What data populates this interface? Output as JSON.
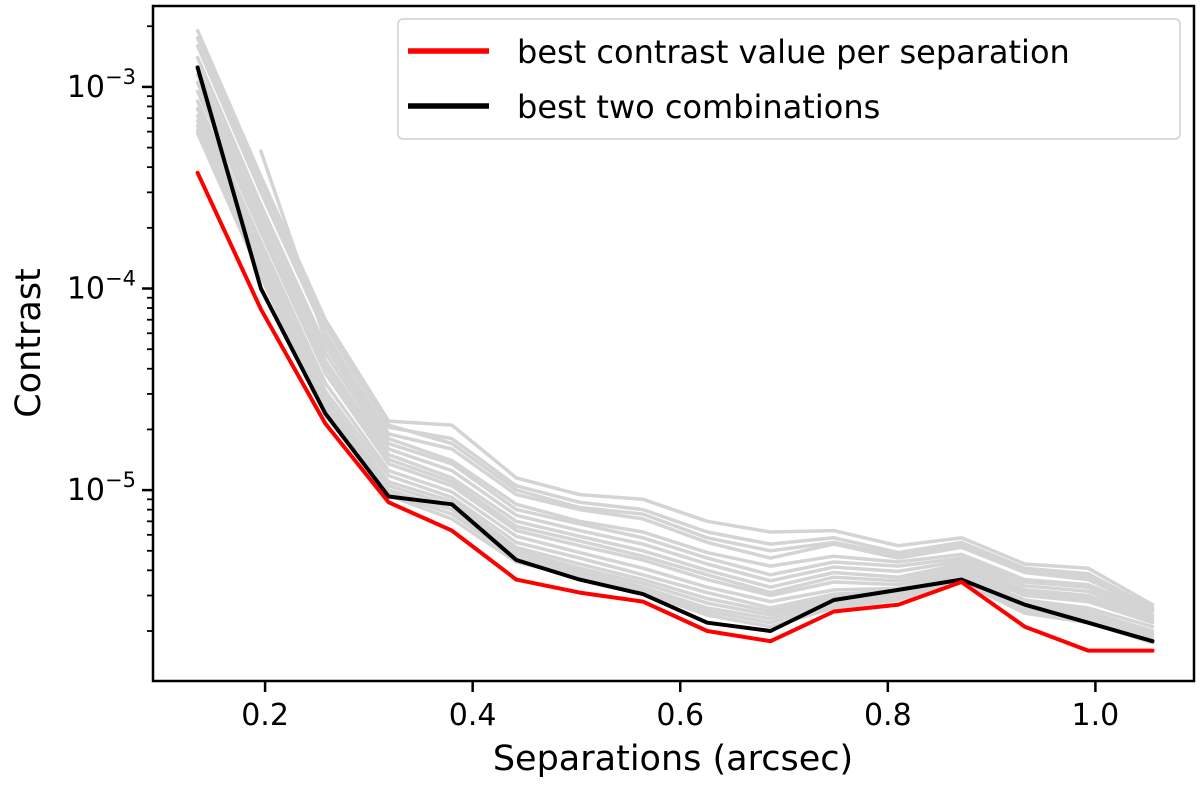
{
  "figure": {
    "background_color": "#ffffff"
  },
  "chart_data": {
    "type": "line",
    "title": "",
    "xlabel": "Separations (arcsec)",
    "ylabel": "Contrast",
    "x_scale": "linear",
    "y_scale": "log",
    "xlim": [
      0.092,
      1.095
    ],
    "ylim": [
      1.13e-06,
      0.00252
    ],
    "grid": false,
    "legend_position": "upper right",
    "colors": {
      "best_per_separation": "#ff0000",
      "best_two_combinations": "#000000",
      "unlabeled_combination": "#d4d4d4",
      "legend_border": "#cfcfcf"
    },
    "x_ticks": [
      {
        "value": 0.2,
        "label": "0.2"
      },
      {
        "value": 0.4,
        "label": "0.4"
      },
      {
        "value": 0.6,
        "label": "0.6"
      },
      {
        "value": 0.8,
        "label": "0.8"
      },
      {
        "value": 1.0,
        "label": "1.0"
      }
    ],
    "y_ticks": [
      {
        "value": 0.001,
        "base": "10",
        "exponent": "−3"
      },
      {
        "value": 0.0001,
        "base": "10",
        "exponent": "−4"
      },
      {
        "value": 1e-05,
        "base": "10",
        "exponent": "−5"
      }
    ],
    "separations": [
      0.135,
      0.196,
      0.258,
      0.319,
      0.38,
      0.442,
      0.503,
      0.564,
      0.626,
      0.687,
      0.748,
      0.81,
      0.871,
      0.932,
      0.993,
      1.055
    ],
    "series": [
      {
        "name": "best contrast value per separation",
        "color": "#ff0000",
        "line_width": 4,
        "z": 3,
        "in_legend": true,
        "start_index": 0,
        "values": [
          0.000375,
          7.9e-05,
          2.14e-05,
          8.7e-06,
          6.3e-06,
          3.6e-06,
          3.1e-06,
          2.8e-06,
          2e-06,
          1.78e-06,
          2.5e-06,
          2.7e-06,
          3.5e-06,
          2.1e-06,
          1.6e-06,
          1.6e-06
        ]
      },
      {
        "name": "best two combinations",
        "color": "#000000",
        "line_width": 4,
        "z": 2,
        "in_legend": true,
        "start_index": 0,
        "values": [
          0.00125,
          0.0001,
          2.4e-05,
          9.3e-06,
          8.5e-06,
          4.5e-06,
          3.6e-06,
          3.05e-06,
          2.2e-06,
          2e-06,
          2.85e-06,
          3.2e-06,
          3.6e-06,
          2.7e-06,
          2.2e-06,
          1.78e-06
        ]
      },
      {
        "name": "unlabeled-gray-line-1",
        "color": "#d4d4d4",
        "line_width": 3.5,
        "z": 1,
        "in_legend": false,
        "start_index": 0,
        "values": [
          0.0019,
          0.00036,
          7e-05,
          2.2e-05,
          2.1e-05,
          1.15e-05,
          9.5e-06,
          9e-06,
          7e-06,
          6.2e-06,
          6.3e-06,
          5.3e-06,
          5.8e-06,
          4.3e-06,
          4.1e-06,
          2.7e-06
        ]
      },
      {
        "name": "unlabeled-gray-line-2",
        "color": "#d4d4d4",
        "line_width": 3.5,
        "z": 1,
        "in_legend": false,
        "start_index": 0,
        "values": [
          0.0016,
          0.0003,
          6e-05,
          1.9e-05,
          1.6e-05,
          9.5e-06,
          8e-06,
          7.2e-06,
          5.5e-06,
          4.6e-06,
          5.4e-06,
          4.6e-06,
          5.2e-06,
          3.9e-06,
          3.6e-06,
          2.55e-06
        ]
      },
      {
        "name": "unlabeled-gray-line-3",
        "color": "#d4d4d4",
        "line_width": 3.5,
        "z": 1,
        "in_legend": false,
        "start_index": 0,
        "values": [
          0.0014,
          0.00026,
          5.2e-05,
          1.7e-05,
          1.35e-05,
          8e-06,
          6.8e-06,
          5.8e-06,
          4.6e-06,
          3.8e-06,
          4.4e-06,
          4.2e-06,
          4.6e-06,
          3.5e-06,
          3.3e-06,
          2.4e-06
        ]
      },
      {
        "name": "unlabeled-gray-line-4",
        "color": "#d4d4d4",
        "line_width": 3.5,
        "z": 1,
        "in_legend": false,
        "start_index": 0,
        "values": [
          0.00115,
          0.00022,
          4.4e-05,
          1.5e-05,
          1.15e-05,
          7e-06,
          5.9e-06,
          5e-06,
          4e-06,
          3.3e-06,
          3.9e-06,
          3.7e-06,
          4.3e-06,
          3.2e-06,
          3e-06,
          2.3e-06
        ]
      },
      {
        "name": "unlabeled-gray-line-5",
        "color": "#d4d4d4",
        "line_width": 3.5,
        "z": 1,
        "in_legend": false,
        "start_index": 0,
        "values": [
          0.00095,
          0.00019,
          3.8e-05,
          1.35e-05,
          1.05e-05,
          6.3e-06,
          5.3e-06,
          4.5e-06,
          3.6e-06,
          3e-06,
          3.5e-06,
          3.4e-06,
          4e-06,
          3e-06,
          2.8e-06,
          2.2e-06
        ]
      },
      {
        "name": "unlabeled-gray-line-6",
        "color": "#d4d4d4",
        "line_width": 3.5,
        "z": 1,
        "in_legend": false,
        "start_index": 0,
        "values": [
          0.00085,
          0.00017,
          3.4e-05,
          1.25e-05,
          9.8e-06,
          5.9e-06,
          4.9e-06,
          4.1e-06,
          3.3e-06,
          2.8e-06,
          3.2e-06,
          3.25e-06,
          3.9e-06,
          2.85e-06,
          2.6e-06,
          2.1e-06
        ]
      },
      {
        "name": "unlabeled-gray-line-7",
        "color": "#d4d4d4",
        "line_width": 3.5,
        "z": 1,
        "in_legend": false,
        "start_index": 0,
        "values": [
          0.00078,
          0.000155,
          3.1e-05,
          1.18e-05,
          9.2e-06,
          5.5e-06,
          4.6e-06,
          3.8e-06,
          3.1e-06,
          2.6e-06,
          3.05e-06,
          3.15e-06,
          3.8e-06,
          2.75e-06,
          2.5e-06,
          2e-06
        ]
      },
      {
        "name": "unlabeled-gray-line-8",
        "color": "#d4d4d4",
        "line_width": 3.5,
        "z": 1,
        "in_legend": false,
        "start_index": 0,
        "values": [
          0.00072,
          0.000145,
          2.9e-05,
          1.1e-05,
          8.8e-06,
          5.2e-06,
          4.3e-06,
          3.6e-06,
          2.9e-06,
          2.5e-06,
          2.95e-06,
          3.05e-06,
          3.7e-06,
          2.7e-06,
          2.4e-06,
          1.95e-06
        ]
      },
      {
        "name": "unlabeled-gray-line-9",
        "color": "#d4d4d4",
        "line_width": 3.5,
        "z": 1,
        "in_legend": false,
        "start_index": 0,
        "values": [
          0.00068,
          0.000135,
          2.75e-05,
          1.05e-05,
          8.4e-06,
          5e-06,
          4.1e-06,
          3.45e-06,
          2.75e-06,
          2.4e-06,
          2.9e-06,
          3e-06,
          3.65e-06,
          2.6e-06,
          2.35e-06,
          1.9e-06
        ]
      },
      {
        "name": "unlabeled-gray-line-10",
        "color": "#d4d4d4",
        "line_width": 3.5,
        "z": 1,
        "in_legend": false,
        "start_index": 0,
        "values": [
          0.00064,
          0.000128,
          2.6e-05,
          1e-05,
          8e-06,
          4.8e-06,
          3.95e-06,
          3.3e-06,
          2.6e-06,
          2.3e-06,
          2.8e-06,
          2.95e-06,
          3.6e-06,
          2.55e-06,
          2.3e-06,
          1.85e-06
        ]
      },
      {
        "name": "unlabeled-gray-line-11",
        "color": "#d4d4d4",
        "line_width": 3.5,
        "z": 1,
        "in_legend": false,
        "start_index": 0,
        "values": [
          0.00061,
          0.00012,
          2.5e-05,
          9.7e-06,
          7.6e-06,
          4.6e-06,
          3.8e-06,
          3.2e-06,
          2.5e-06,
          2.2e-06,
          2.7e-06,
          2.9e-06,
          3.55e-06,
          2.5e-06,
          2.25e-06,
          1.8e-06
        ]
      },
      {
        "name": "unlabeled-gray-line-12",
        "color": "#d4d4d4",
        "line_width": 3.5,
        "z": 1,
        "in_legend": false,
        "start_index": 0,
        "values": [
          0.00059,
          0.000115,
          2.4e-05,
          9.4e-06,
          7.2e-06,
          4.4e-06,
          3.7e-06,
          3.1e-06,
          2.4e-06,
          2.1e-06,
          2.6e-06,
          2.85e-06,
          3.5e-06,
          2.45e-06,
          2.2e-06,
          1.75e-06
        ]
      },
      {
        "name": "unlabeled-gray-line-13",
        "color": "#d4d4d4",
        "line_width": 3.5,
        "z": 1,
        "in_legend": false,
        "start_index": 0,
        "values": [
          0.00105,
          0.000205,
          4.1e-05,
          1.42e-05,
          1.1e-05,
          6.6e-06,
          5.6e-06,
          4.7e-06,
          3.8e-06,
          3.1e-06,
          3.7e-06,
          3.55e-06,
          4.15e-06,
          3.1e-06,
          2.9e-06,
          2.25e-06
        ]
      },
      {
        "name": "unlabeled-gray-line-14",
        "color": "#d4d4d4",
        "line_width": 3.5,
        "z": 1,
        "in_legend": false,
        "start_index": 0,
        "values": [
          0.00125,
          0.00024,
          4.8e-05,
          1.6e-05,
          1.25e-05,
          7.5e-06,
          6.3e-06,
          5.4e-06,
          4.3e-06,
          3.55e-06,
          4.15e-06,
          3.95e-06,
          4.45e-06,
          3.35e-06,
          3.15e-06,
          2.35e-06
        ]
      },
      {
        "name": "unlabeled-gray-line-15",
        "color": "#d4d4d4",
        "line_width": 3.5,
        "z": 1,
        "in_legend": false,
        "start_index": 0,
        "values": [
          0.00175,
          0.00033,
          6.5e-05,
          2.05e-05,
          1.8e-05,
          1.05e-05,
          8.7e-06,
          8e-06,
          6.2e-06,
          5.4e-06,
          5.8e-06,
          4.9e-06,
          5.5e-06,
          4.1e-06,
          3.85e-06,
          2.6e-06
        ]
      },
      {
        "name": "unlabeled-gray-line-16",
        "color": "#d4d4d4",
        "line_width": 3.5,
        "z": 1,
        "in_legend": false,
        "start_index": 1,
        "values": [
          0.00048,
          5.6e-05,
          1.8e-05,
          1.4e-05,
          8.5e-06,
          7e-06,
          6.2e-06,
          4.9e-06,
          4.2e-06,
          4.7e-06,
          4.4e-06,
          4.8e-06,
          3.6e-06,
          3.4e-06,
          2.5e-06
        ]
      },
      {
        "name": "unlabeled-gray-line-17",
        "color": "#d4d4d4",
        "line_width": 3.5,
        "z": 1,
        "in_legend": false,
        "start_index": 2,
        "values": [
          6.7e-05,
          2.1e-05,
          1.7e-05,
          1e-05,
          8.2e-06,
          7.6e-06,
          5.8e-06,
          5e-06,
          5.5e-06,
          4.75e-06,
          5.3e-06,
          4e-06,
          3.7e-06,
          2.55e-06
        ]
      }
    ]
  }
}
